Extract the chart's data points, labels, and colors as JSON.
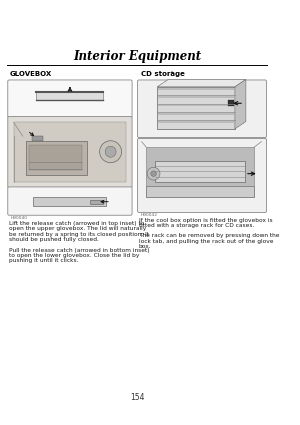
{
  "title": "Interior Equipment",
  "page_number": "154",
  "bg_color": "#ffffff",
  "title_color": "#000000",
  "title_fontsize": 8.5,
  "line_color": "#000000",
  "left_heading": "GLOVEBOX",
  "right_heading": "CD storage",
  "right_heading_star": "*",
  "heading_fontsize": 5.0,
  "left_text": "Lift the release catch (arrowed in top inset) to\nopen the upper glovebox. The lid will naturally\nbe returned by a spring to its closed position. It\nshould be pushed fully closed.\n\nPull the release catch (arrowed in bottom inset)\nto open the lower glovebox. Close the lid by\npushing it until it clicks.",
  "right_text": "If the cool box option is fitted the glovebox is\nfitted with a storage rack for CD cases.\n\nThe rack can be removed by pressing down the\nlock tab, and pulling the rack out of the glove\nbox.",
  "text_fontsize": 4.2,
  "text_color": "#1a1a1a",
  "small_label_left": "H90040",
  "small_label_right": "H90042",
  "small_label_fontsize": 3.2,
  "img_border_color": "#888888",
  "img_bg": "#f0f0f0",
  "img_bg_dark": "#d8d8d8",
  "img_bg_mid": "#e4e4e4"
}
